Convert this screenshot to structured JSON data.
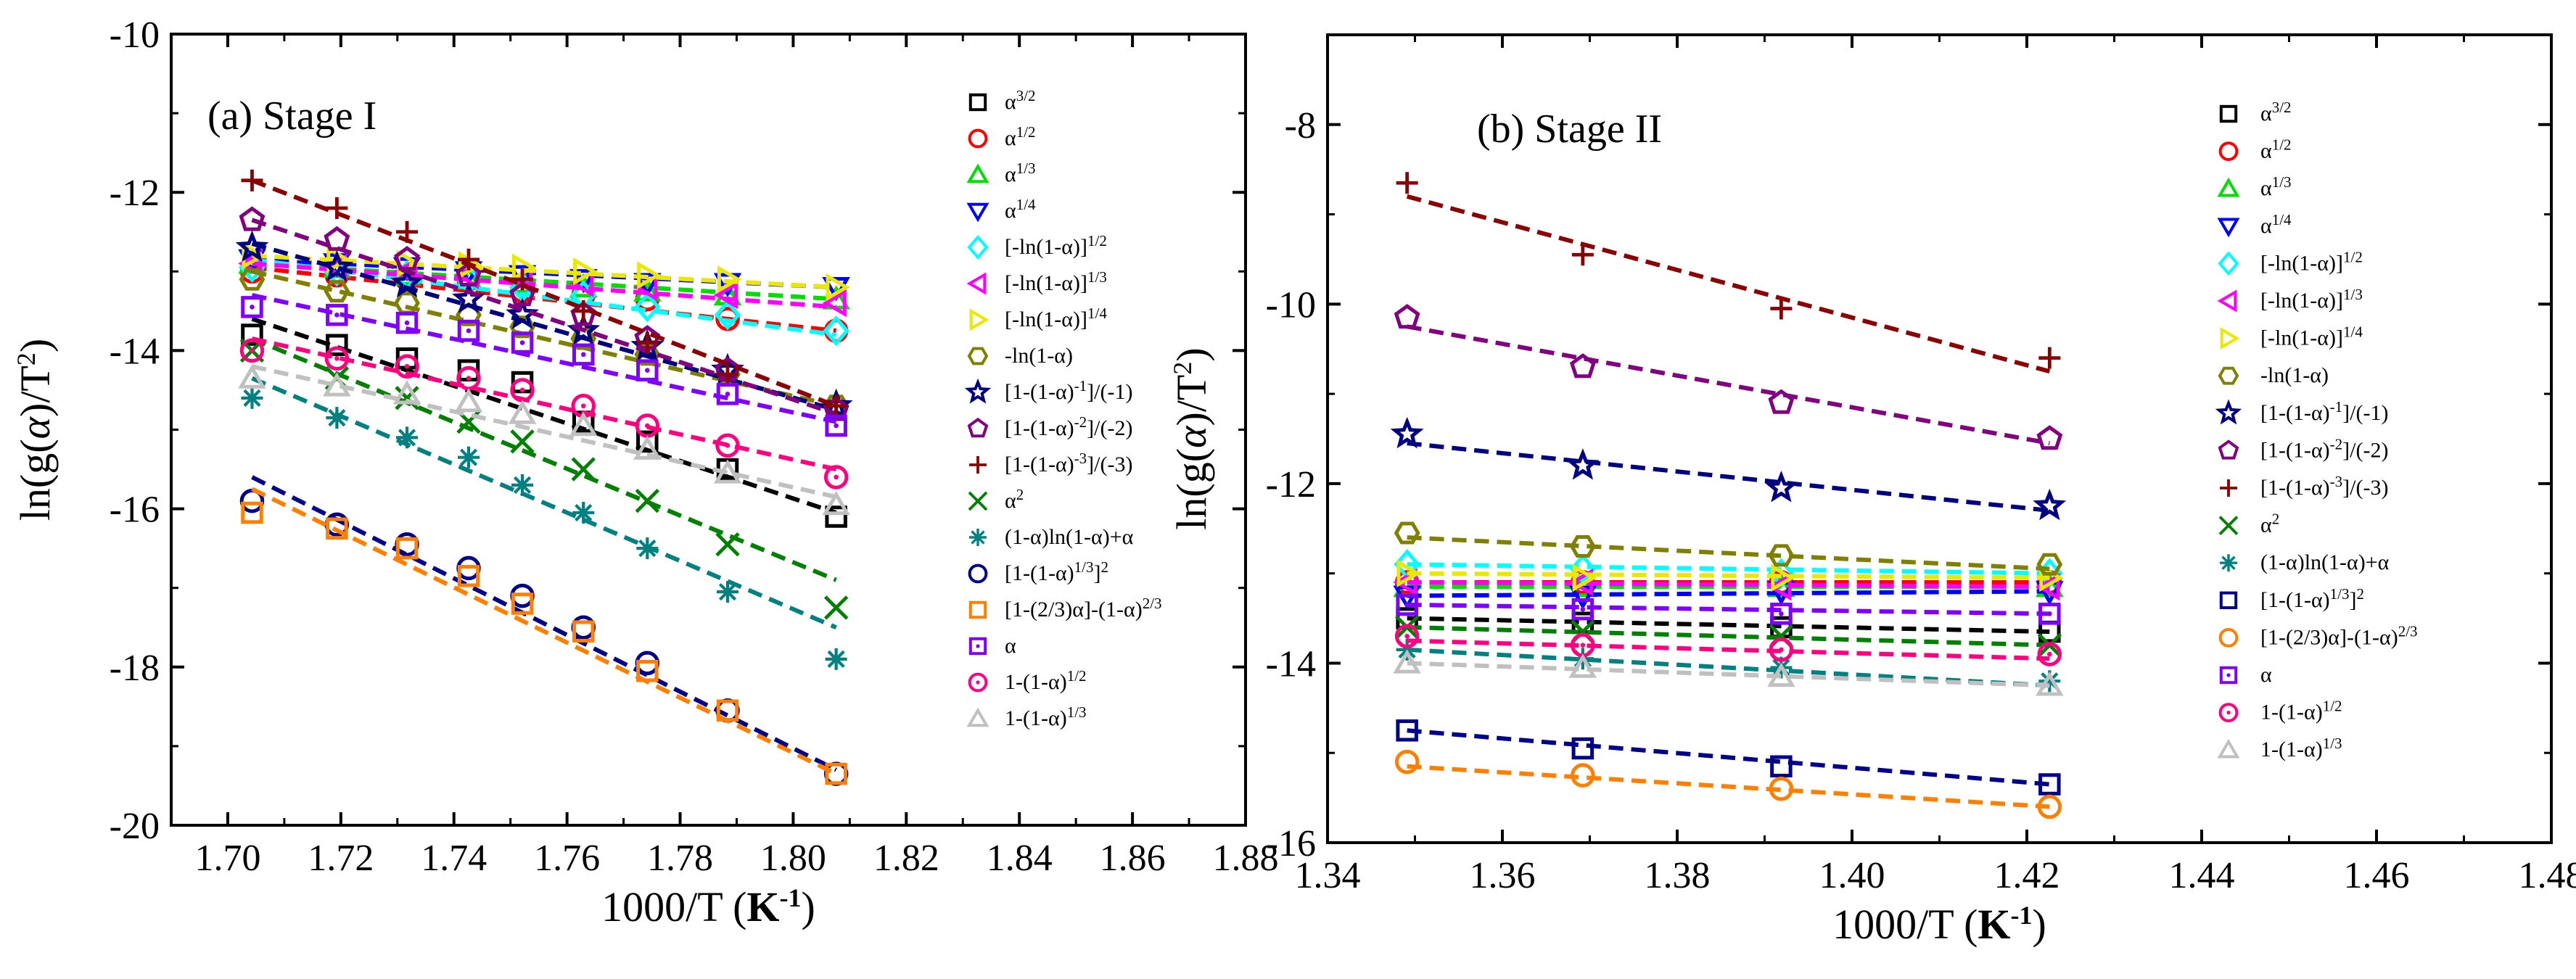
{
  "figure": {
    "panels": [
      "a",
      "b"
    ]
  },
  "chart_data": [
    {
      "id": "a",
      "type": "scatter",
      "title": "(a)  Stage I",
      "xlabel": {
        "main": "1000/T (",
        "unit": "K",
        "sup": "-1",
        "close": ")"
      },
      "ylabel": {
        "main": "ln(g(",
        "alpha": "α",
        "tail": ")/T",
        "sup": "2",
        "close": ")"
      },
      "xlim": [
        1.69,
        1.88
      ],
      "ylim": [
        -20,
        -10
      ],
      "x_ticks": [
        1.7,
        1.72,
        1.74,
        1.76,
        1.78,
        1.8,
        1.82,
        1.84,
        1.86,
        1.88
      ],
      "x_tick_labels": [
        "1.70",
        "1.72",
        "1.74",
        "1.76",
        "1.78",
        "1.80",
        "1.82",
        "1.84",
        "1.86",
        "1.88"
      ],
      "y_ticks": [
        -20,
        -18,
        -16,
        -14,
        -12,
        -10
      ],
      "y_tick_labels": [
        "-20",
        "-18",
        "-16",
        "-14",
        "-12",
        "-10"
      ],
      "legend_position": "right",
      "x": [
        1.7043,
        1.7193,
        1.7317,
        1.7426,
        1.7521,
        1.7629,
        1.7742,
        1.7884,
        1.8076
      ],
      "series": [
        {
          "name": "α^{3/2}",
          "marker": "square",
          "color": "#000000",
          "fit": [
            -13.6,
            -16.05
          ],
          "y": [
            -13.8,
            -13.93,
            -14.1,
            -14.25,
            -14.4,
            -14.9,
            -15.15,
            -15.5,
            -16.1
          ]
        },
        {
          "name": "α^{1/2}",
          "marker": "circle",
          "color": "#ff0000",
          "fit": [
            -12.95,
            -13.75
          ],
          "y": [
            -13.0,
            -13.05,
            -13.1,
            -13.1,
            -13.25,
            -13.3,
            -13.35,
            -13.6,
            -13.75
          ]
        },
        {
          "name": "α^{1/3}",
          "marker": "triangle-up",
          "color": "#00dd00",
          "fit": [
            -12.9,
            -13.35
          ],
          "y": [
            -12.9,
            -12.95,
            -13.05,
            -13.1,
            -13.15,
            -13.2,
            -13.25,
            -13.3,
            -13.35
          ]
        },
        {
          "name": "α^{1/4}",
          "marker": "triangle-down",
          "color": "#0000ff",
          "fit": [
            -12.85,
            -13.2
          ],
          "y": [
            -12.85,
            -12.9,
            -12.95,
            -13.0,
            -13.05,
            -13.1,
            -13.15,
            -13.15,
            -13.2
          ]
        },
        {
          "name": "[-ln(1-α)]^{1/2}",
          "marker": "diamond",
          "color": "#00ffff",
          "fit": [
            -12.85,
            -13.8
          ],
          "y": [
            -12.95,
            -13.0,
            -13.05,
            -13.1,
            -13.2,
            -13.3,
            -13.45,
            -13.55,
            -13.75
          ]
        },
        {
          "name": "[-ln(1-α)]^{1/3}",
          "marker": "triangle-left",
          "color": "#ff00ff",
          "fit": [
            -12.9,
            -13.45
          ],
          "y": [
            -12.9,
            -12.95,
            -13.0,
            -13.05,
            -13.1,
            -13.15,
            -13.2,
            -13.3,
            -13.4
          ]
        },
        {
          "name": "[-ln(1-α)]^{1/4}",
          "marker": "triangle-right",
          "color": "#e8e800",
          "fit": [
            -12.8,
            -13.2
          ],
          "y": [
            -12.8,
            -12.85,
            -12.9,
            -12.92,
            -12.95,
            -13.0,
            -13.05,
            -13.1,
            -13.2
          ]
        },
        {
          "name": "-ln(1-α)",
          "marker": "hexagon",
          "color": "#808000",
          "fit": [
            -13.0,
            -14.7
          ],
          "y": [
            -13.1,
            -13.25,
            -13.4,
            -13.55,
            -13.7,
            -13.85,
            -14.05,
            -14.3,
            -14.7
          ]
        },
        {
          "name": "[1-(1-α)^{-1}]/(-1)",
          "marker": "star",
          "color": "#000080",
          "fit": [
            -12.65,
            -14.75
          ],
          "y": [
            -12.7,
            -12.95,
            -13.15,
            -13.35,
            -13.55,
            -13.75,
            -13.95,
            -14.25,
            -14.7
          ]
        },
        {
          "name": "[1-(1-α)^{-2}]/(-2)",
          "marker": "pentagon",
          "color": "#800080",
          "fit": [
            -12.35,
            -14.8
          ],
          "y": [
            -12.35,
            -12.6,
            -12.85,
            -13.05,
            -13.3,
            -13.55,
            -13.85,
            -14.25,
            -14.75
          ]
        },
        {
          "name": "[1-(1-α)^{-3}]/(-3)",
          "marker": "plus",
          "color": "#8b0000",
          "fit": [
            -11.85,
            -14.7
          ],
          "y": [
            -11.85,
            -12.2,
            -12.5,
            -12.85,
            -13.1,
            -13.5,
            -13.9,
            -14.3,
            -14.7
          ]
        },
        {
          "name": "α^{2}",
          "marker": "x",
          "color": "#008000",
          "fit": [
            -13.85,
            -16.9
          ],
          "y": [
            -14.0,
            -14.35,
            -14.6,
            -14.9,
            -15.15,
            -15.5,
            -15.9,
            -16.45,
            -17.25
          ]
        },
        {
          "name": "(1-α)ln(1-α)+α",
          "marker": "asterisk",
          "color": "#008080",
          "fit": [
            -14.35,
            -17.5
          ],
          "y": [
            -14.6,
            -14.85,
            -15.1,
            -15.35,
            -15.7,
            -16.05,
            -16.5,
            -17.05,
            -17.9
          ]
        },
        {
          "name": "[1-(1-α)^{1/3}]^{2}",
          "marker": "circle",
          "color": "#00008b",
          "fit": [
            -15.6,
            -19.3
          ],
          "y": [
            -15.9,
            -16.2,
            -16.45,
            -16.75,
            -17.1,
            -17.5,
            -17.95,
            -18.55,
            -19.35
          ]
        },
        {
          "name": "[1-(2/3)α]-(1-α)^{2/3}",
          "marker": "square",
          "color": "#ff8000",
          "fit": [
            -15.75,
            -19.35
          ],
          "y": [
            -16.05,
            -16.25,
            -16.5,
            -16.85,
            -17.2,
            -17.55,
            -18.05,
            -18.55,
            -19.35
          ]
        },
        {
          "name": "α",
          "marker": "square-dot",
          "color": "#8000ff",
          "fit": [
            -13.3,
            -14.9
          ],
          "y": [
            -13.45,
            -13.55,
            -13.65,
            -13.75,
            -13.9,
            -14.05,
            -14.25,
            -14.55,
            -14.95
          ]
        },
        {
          "name": "1-(1-α)^{1/2}",
          "marker": "circle-dot",
          "color": "#ff0080",
          "fit": [
            -13.85,
            -15.5
          ],
          "y": [
            -14.0,
            -14.1,
            -14.2,
            -14.35,
            -14.5,
            -14.7,
            -14.95,
            -15.2,
            -15.6
          ]
        },
        {
          "name": "1-(1-α)^{1/3}",
          "marker": "triangle-up",
          "color": "#c0c0c0",
          "fit": [
            -14.2,
            -15.85
          ],
          "y": [
            -14.35,
            -14.45,
            -14.55,
            -14.65,
            -14.8,
            -14.95,
            -15.25,
            -15.55,
            -15.95
          ]
        }
      ]
    },
    {
      "id": "b",
      "type": "scatter",
      "title": "(b)  Stage II",
      "xlabel": {
        "main": "1000/T (",
        "unit": "K",
        "sup": "-1",
        "close": ")"
      },
      "ylabel": {
        "main": "ln(g(",
        "alpha": "α",
        "tail": ")/T",
        "sup": "2",
        "close": ")"
      },
      "xlim": [
        1.34,
        1.48
      ],
      "ylim": [
        -16,
        -7
      ],
      "x_ticks": [
        1.34,
        1.36,
        1.38,
        1.4,
        1.42,
        1.44,
        1.46,
        1.48
      ],
      "x_tick_labels": [
        "1.34",
        "1.36",
        "1.38",
        "1.40",
        "1.42",
        "1.44",
        "1.46",
        "1.48"
      ],
      "y_ticks": [
        -16,
        -14,
        -12,
        -10,
        -8
      ],
      "y_tick_labels": [
        "-16",
        "-14",
        "-12",
        "-10",
        "-8"
      ],
      "legend_position": "right",
      "x": [
        1.3491,
        1.3692,
        1.3919,
        1.4226
      ],
      "series": [
        {
          "name": "α^{3/2}",
          "marker": "square",
          "color": "#000000",
          "fit": [
            -13.5,
            -13.65
          ],
          "y": [
            -13.5,
            -13.55,
            -13.6,
            -13.65
          ]
        },
        {
          "name": "α^{1/2}",
          "marker": "circle",
          "color": "#ff0000",
          "fit": [
            -13.1,
            -13.1
          ],
          "y": [
            -13.1,
            -13.1,
            -13.1,
            -13.1
          ]
        },
        {
          "name": "α^{1/3}",
          "marker": "triangle-up",
          "color": "#00dd00",
          "fit": [
            -13.15,
            -13.15
          ],
          "y": [
            -13.15,
            -13.15,
            -13.15,
            -13.15
          ]
        },
        {
          "name": "α^{1/4}",
          "marker": "triangle-down",
          "color": "#0000ff",
          "fit": [
            -13.25,
            -13.2
          ],
          "y": [
            -13.25,
            -13.25,
            -13.2,
            -13.2
          ]
        },
        {
          "name": "[-ln(1-α)]^{1/2}",
          "marker": "diamond",
          "color": "#00ffff",
          "fit": [
            -12.9,
            -13.0
          ],
          "y": [
            -12.9,
            -12.95,
            -13.0,
            -13.0
          ]
        },
        {
          "name": "[-ln(1-α)]^{1/3}",
          "marker": "triangle-left",
          "color": "#ff00ff",
          "fit": [
            -13.1,
            -13.15
          ],
          "y": [
            -13.1,
            -13.1,
            -13.15,
            -13.15
          ]
        },
        {
          "name": "[-ln(1-α)]^{1/4}",
          "marker": "triangle-right",
          "color": "#e8e800",
          "fit": [
            -13.0,
            -13.05
          ],
          "y": [
            -13.0,
            -13.05,
            -13.05,
            -13.05
          ]
        },
        {
          "name": "-ln(1-α)",
          "marker": "hexagon",
          "color": "#808000",
          "fit": [
            -12.6,
            -12.95
          ],
          "y": [
            -12.55,
            -12.7,
            -12.8,
            -12.9
          ]
        },
        {
          "name": "[1-(1-α)^{-1}]/(-1)",
          "marker": "star",
          "color": "#000080",
          "fit": [
            -11.55,
            -12.3
          ],
          "y": [
            -11.45,
            -11.8,
            -12.05,
            -12.25
          ]
        },
        {
          "name": "[1-(1-α)^{-2}]/(-2)",
          "marker": "pentagon",
          "color": "#800080",
          "fit": [
            -10.25,
            -11.55
          ],
          "y": [
            -10.15,
            -10.7,
            -11.1,
            -11.5
          ]
        },
        {
          "name": "[1-(1-α)^{-3}]/(-3)",
          "marker": "plus",
          "color": "#8b0000",
          "fit": [
            -8.8,
            -10.75
          ],
          "y": [
            -8.65,
            -9.45,
            -10.05,
            -10.6
          ]
        },
        {
          "name": "α^{2}",
          "marker": "x",
          "color": "#008000",
          "fit": [
            -13.6,
            -13.8
          ],
          "y": [
            -13.6,
            -13.65,
            -13.7,
            -13.8
          ]
        },
        {
          "name": "(1-α)ln(1-α)+α",
          "marker": "asterisk",
          "color": "#008080",
          "fit": [
            -13.85,
            -14.25
          ],
          "y": [
            -13.85,
            -13.95,
            -14.05,
            -14.2
          ]
        },
        {
          "name": "[1-(1-α)^{1/3}]^{2}",
          "marker": "square",
          "color": "#00008b",
          "fit": [
            -14.75,
            -15.35
          ],
          "y": [
            -14.75,
            -14.95,
            -15.15,
            -15.35
          ]
        },
        {
          "name": "[1-(2/3)α]-(1-α)^{2/3}",
          "marker": "circle",
          "color": "#ff8000",
          "fit": [
            -15.15,
            -15.6
          ],
          "y": [
            -15.1,
            -15.25,
            -15.4,
            -15.6
          ]
        },
        {
          "name": "α",
          "marker": "square-dot",
          "color": "#8000ff",
          "fit": [
            -13.35,
            -13.45
          ],
          "y": [
            -13.35,
            -13.4,
            -13.45,
            -13.45
          ]
        },
        {
          "name": "1-(1-α)^{1/2}",
          "marker": "circle-dot",
          "color": "#ff0080",
          "fit": [
            -13.75,
            -13.95
          ],
          "y": [
            -13.7,
            -13.8,
            -13.85,
            -13.9
          ]
        },
        {
          "name": "1-(1-α)^{1/3}",
          "marker": "triangle-up",
          "color": "#c0c0c0",
          "fit": [
            -14.0,
            -14.25
          ],
          "y": [
            -14.0,
            -14.05,
            -14.15,
            -14.25
          ]
        }
      ]
    }
  ]
}
